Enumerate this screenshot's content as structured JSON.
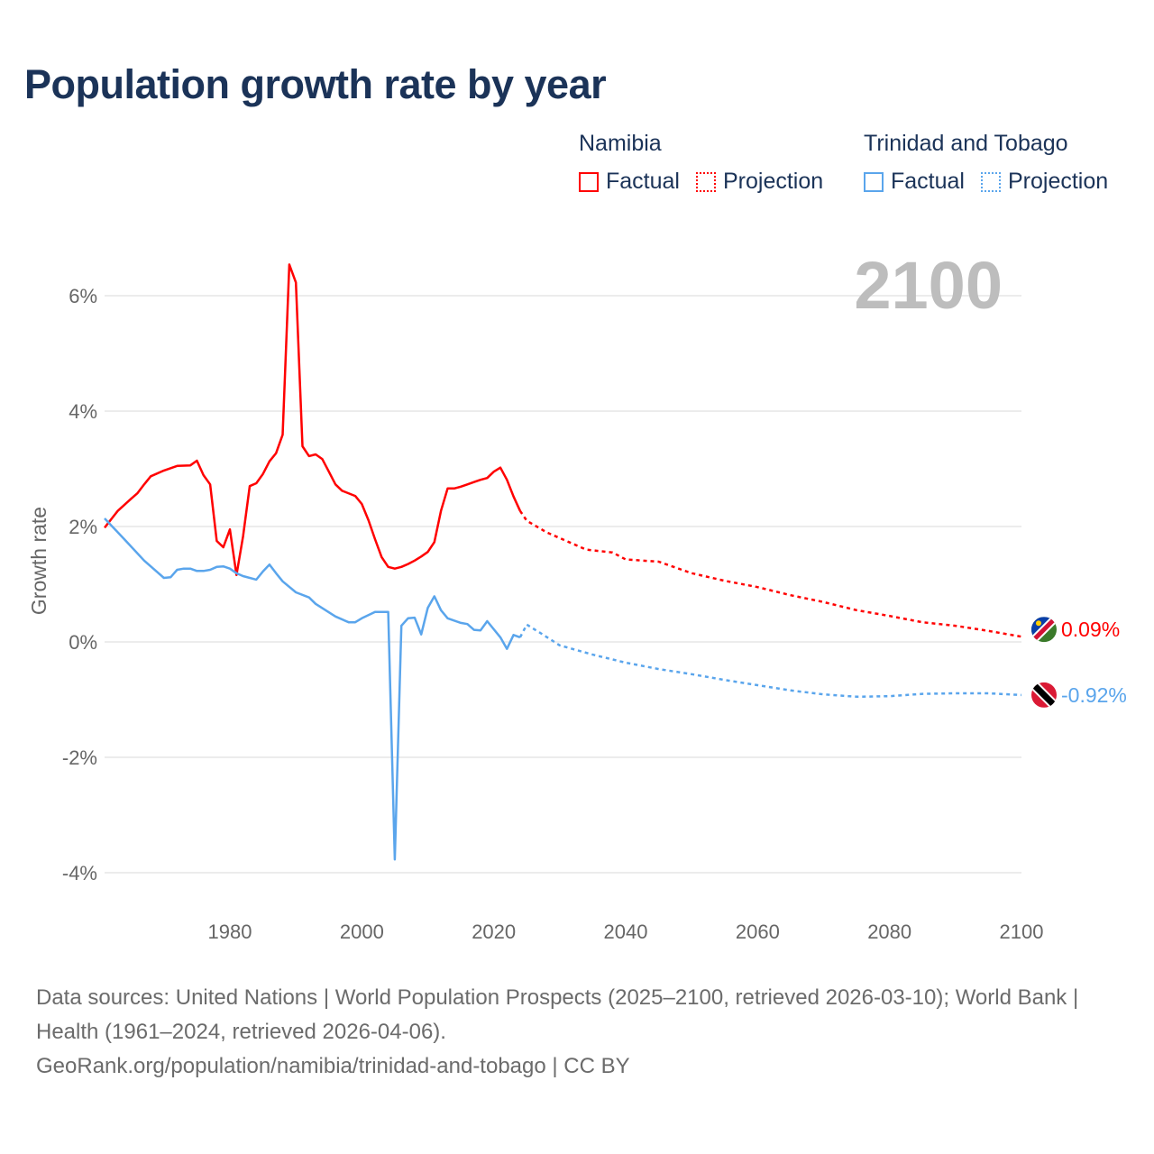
{
  "title": "Population growth rate by year",
  "legend": [
    {
      "country": "Namibia",
      "factual": "Factual",
      "projection": "Projection",
      "color": "#ff0000"
    },
    {
      "country": "Trinidad and Tobago",
      "factual": "Factual",
      "projection": "Projection",
      "color": "#5aa5ec"
    }
  ],
  "year_label": "2100",
  "footer": {
    "sources": "Data sources: United Nations | World Population Prospects (2025–2100, retrieved 2026-03-10); World Bank | Health (1961–2024, retrieved 2026-04-06).",
    "credit": "GeoRank.org/population/namibia/trinidad-and-tobago | CC BY"
  },
  "chart_data": {
    "type": "line",
    "title": "Population growth rate by year",
    "xlabel": "",
    "ylabel": "Growth rate",
    "xlim": [
      1961,
      2100
    ],
    "ylim": [
      -4.6,
      6.9
    ],
    "xticks": [
      1980,
      2000,
      2020,
      2040,
      2060,
      2080,
      2100
    ],
    "yticks": [
      -4,
      -2,
      0,
      2,
      4,
      6
    ],
    "ytick_labels": [
      "-4%",
      "-2%",
      "0%",
      "2%",
      "4%",
      "6%"
    ],
    "grid": true,
    "legend_position": "top-right",
    "series": [
      {
        "name": "Namibia",
        "color": "#ff0000",
        "end_label": "0.09%",
        "factual": {
          "x": [
            1961,
            1963,
            1965,
            1966,
            1967,
            1968,
            1970,
            1972,
            1974,
            1975,
            1976,
            1977,
            1978,
            1979,
            1980,
            1981,
            1982,
            1983,
            1984,
            1985,
            1986,
            1987,
            1988,
            1989,
            1990,
            1991,
            1992,
            1993,
            1994,
            1995,
            1996,
            1997,
            1999,
            2000,
            2001,
            2002,
            2003,
            2004,
            2005,
            2006,
            2007,
            2008,
            2009,
            2010,
            2011,
            2012,
            2013,
            2014,
            2015,
            2016,
            2017,
            2018,
            2019,
            2020,
            2021,
            2022,
            2023,
            2024
          ],
          "y": [
            1.98,
            2.27,
            2.48,
            2.58,
            2.73,
            2.87,
            2.97,
            3.05,
            3.06,
            3.14,
            2.89,
            2.73,
            1.75,
            1.64,
            1.95,
            1.16,
            1.83,
            2.7,
            2.75,
            2.91,
            3.13,
            3.27,
            3.59,
            6.54,
            6.23,
            3.39,
            3.22,
            3.25,
            3.17,
            2.95,
            2.73,
            2.62,
            2.53,
            2.39,
            2.11,
            1.78,
            1.47,
            1.3,
            1.27,
            1.3,
            1.35,
            1.41,
            1.48,
            1.56,
            1.73,
            2.27,
            2.66,
            2.66,
            2.69,
            2.73,
            2.77,
            2.81,
            2.84,
            2.95,
            3.02,
            2.81,
            2.52,
            2.27
          ]
        },
        "projection": {
          "x": [
            2024,
            2025,
            2028,
            2030,
            2032,
            2034,
            2038,
            2040,
            2045,
            2050,
            2055,
            2060,
            2065,
            2070,
            2075,
            2080,
            2085,
            2090,
            2095,
            2100
          ],
          "y": [
            2.27,
            2.1,
            1.9,
            1.8,
            1.7,
            1.6,
            1.55,
            1.43,
            1.39,
            1.19,
            1.06,
            0.95,
            0.81,
            0.69,
            0.55,
            0.45,
            0.34,
            0.28,
            0.19,
            0.09
          ]
        }
      },
      {
        "name": "Trinidad and Tobago",
        "color": "#5aa5ec",
        "end_label": "-0.92%",
        "factual": {
          "x": [
            1961,
            1962,
            1964,
            1967,
            1970,
            1971,
            1972,
            1973,
            1974,
            1975,
            1976,
            1977,
            1978,
            1979,
            1980,
            1981,
            1982,
            1984,
            1985,
            1986,
            1987,
            1988,
            1990,
            1992,
            1993,
            1996,
            1998,
            1999,
            2000,
            2002,
            2004,
            2005,
            2006,
            2007,
            2008,
            2009,
            2010,
            2011,
            2012,
            2013,
            2015,
            2016,
            2017,
            2018,
            2019,
            2021,
            2022,
            2023,
            2024
          ],
          "y": [
            2.14,
            2.02,
            1.78,
            1.41,
            1.11,
            1.12,
            1.25,
            1.27,
            1.27,
            1.23,
            1.23,
            1.25,
            1.3,
            1.31,
            1.27,
            1.19,
            1.14,
            1.08,
            1.22,
            1.34,
            1.19,
            1.05,
            0.86,
            0.77,
            0.66,
            0.44,
            0.34,
            0.34,
            0.41,
            0.52,
            0.52,
            -3.77,
            0.28,
            0.41,
            0.42,
            0.13,
            0.59,
            0.79,
            0.55,
            0.41,
            0.33,
            0.31,
            0.21,
            0.2,
            0.36,
            0.08,
            -0.12,
            0.12,
            0.08
          ]
        },
        "projection": {
          "x": [
            2024,
            2025,
            2027,
            2030,
            2035,
            2040,
            2045,
            2050,
            2055,
            2060,
            2065,
            2070,
            2075,
            2080,
            2085,
            2090,
            2095,
            2100
          ],
          "y": [
            0.08,
            0.3,
            0.16,
            -0.06,
            -0.22,
            -0.36,
            -0.47,
            -0.56,
            -0.66,
            -0.75,
            -0.84,
            -0.91,
            -0.95,
            -0.94,
            -0.9,
            -0.89,
            -0.89,
            -0.92
          ]
        }
      }
    ]
  }
}
